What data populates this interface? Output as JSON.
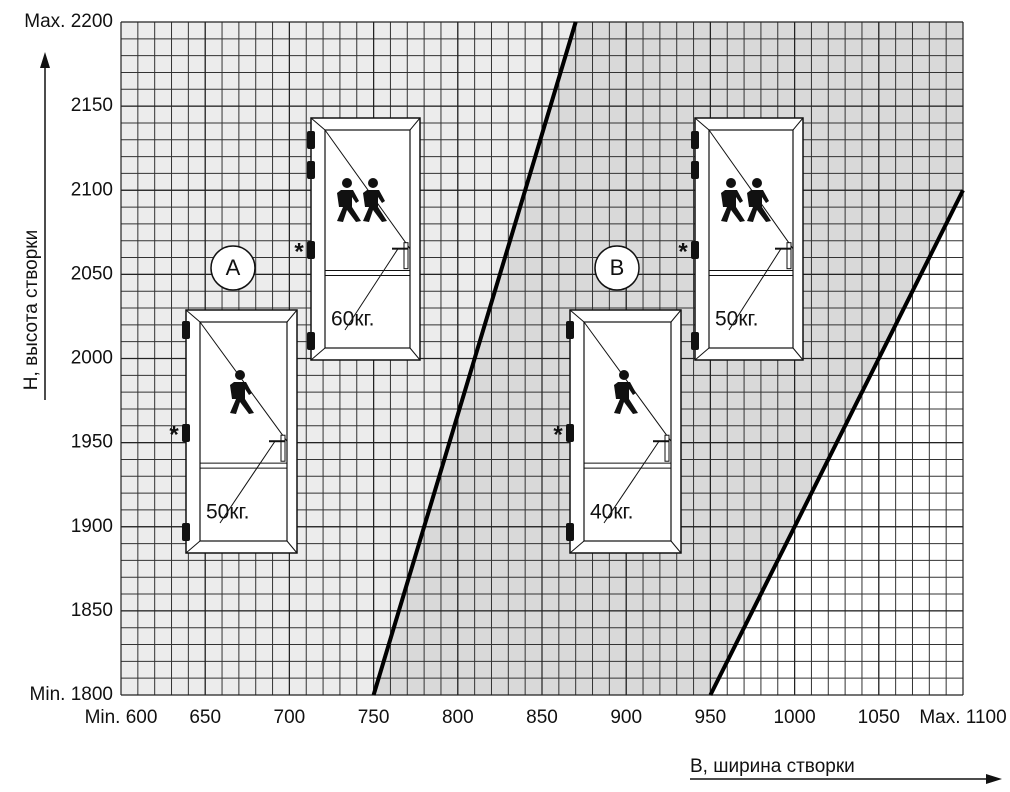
{
  "chart_data": {
    "type": "line",
    "x_label": "B, ширина створки",
    "y_label": "H, высота створки",
    "xlim": [
      600,
      1100
    ],
    "ylim": [
      1800,
      2200
    ],
    "xticks": [
      {
        "value": 600,
        "label": "Min. 600"
      },
      650,
      700,
      750,
      800,
      850,
      900,
      950,
      1000,
      1050,
      {
        "value": 1100,
        "label": "Max. 1100"
      }
    ],
    "yticks": [
      {
        "value": 1800,
        "label": "Min. 1800"
      },
      1850,
      1900,
      1950,
      2000,
      2050,
      2100,
      2150,
      {
        "value": 2200,
        "label": "Max. 2200"
      }
    ],
    "minor_grid": 10,
    "series": [
      {
        "color": "#000000",
        "x": [
          750,
          870
        ],
        "y": [
          1800,
          2200
        ]
      },
      {
        "color": "#000000",
        "x": [
          950,
          1100
        ],
        "y": [
          1800,
          2100
        ]
      }
    ],
    "zone_colors": [
      "#ececec",
      "#d9d9d9",
      "#ffffff"
    ],
    "zones": [
      {
        "label": "A"
      },
      {
        "label": "B"
      }
    ],
    "doors": [
      {
        "weight": "50кг.",
        "mark": "*"
      },
      {
        "weight": "60кг.",
        "mark": "*"
      },
      {
        "weight": "40кг.",
        "mark": "*"
      },
      {
        "weight": "50кг.",
        "mark": "*"
      }
    ]
  }
}
